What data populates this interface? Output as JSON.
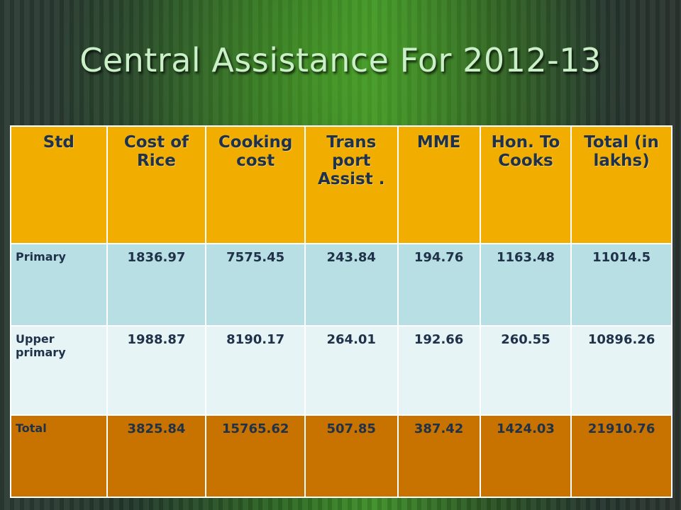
{
  "title": "Central Assistance For 2012-13",
  "table": {
    "headers": [
      "Std",
      "Cost of Rice",
      "Cooking cost",
      "Trans port Assist .",
      "MME",
      "Hon. To Cooks",
      "Total (in lakhs)"
    ],
    "rows": [
      {
        "label": "Primary",
        "values": [
          "1836.97",
          "7575.45",
          "243.84",
          "194.76",
          "1163.48",
          "11014.5"
        ]
      },
      {
        "label": "Upper primary",
        "values": [
          "1988.87",
          "8190.17",
          "264.01",
          "192.66",
          "260.55",
          "10896.26"
        ]
      },
      {
        "label": "Total",
        "values": [
          "3825.84",
          "15765.62",
          "507.85",
          "387.42",
          "1424.03",
          "21910.76"
        ]
      }
    ]
  },
  "colors": {
    "header_bg": "#f2ae00",
    "primary_row_bg": "#b8e0e4",
    "upper_row_bg": "#e7f4f6",
    "total_row_bg": "#c87200",
    "text": "#20324a",
    "title": "#c9f0c6"
  }
}
